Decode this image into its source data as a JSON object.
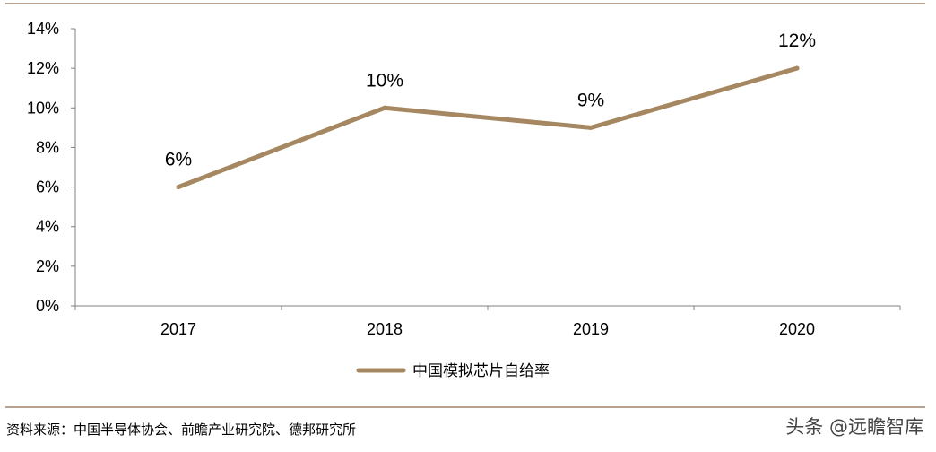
{
  "chart_data": {
    "type": "line",
    "categories": [
      "2017",
      "2018",
      "2019",
      "2020"
    ],
    "series": [
      {
        "name": "中国模拟芯片自给率",
        "values": [
          6,
          10,
          9,
          12
        ],
        "labels": [
          "6%",
          "10%",
          "9%",
          "12%"
        ]
      }
    ],
    "y_ticks": [
      "0%",
      "2%",
      "4%",
      "6%",
      "8%",
      "10%",
      "12%",
      "14%"
    ],
    "ylim": [
      0,
      14
    ],
    "grid": false,
    "legend_position": "bottom-center"
  },
  "colors": {
    "line": "#A58861",
    "rule": "#A0826A"
  },
  "footer": {
    "source": "资料来源：中国半导体协会、前瞻产业研究院、德邦研究所",
    "watermark": "头条 @远瞻智库"
  }
}
